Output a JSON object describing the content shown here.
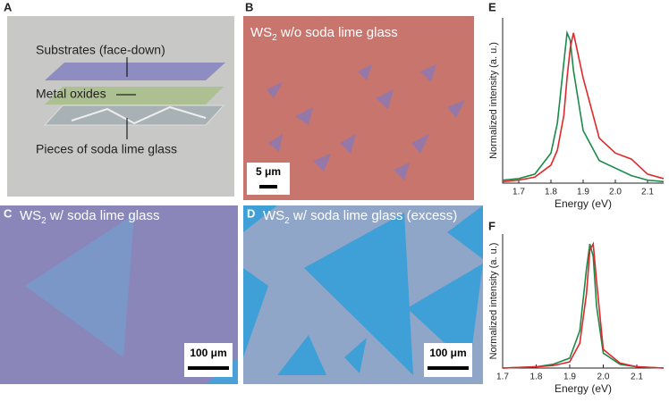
{
  "panels": {
    "a": {
      "panel_label": "A",
      "labels": [
        "Substrates (face-down)",
        "Metal oxides",
        "Pieces of soda lime glass"
      ]
    },
    "b": {
      "panel_label": "B",
      "caption": {
        "main": "WS",
        "sub": "2",
        "rest": " w/o soda lime glass"
      },
      "scale_bar": "5 μm"
    },
    "c": {
      "panel_label": "C",
      "caption": {
        "main": "WS",
        "sub": "2",
        "rest": " w/ soda lime glass"
      },
      "scale_bar": "100 μm"
    },
    "d": {
      "panel_label": "D",
      "caption": {
        "main": "WS",
        "sub": "2",
        "rest": " w/ soda lime glass (excess)"
      },
      "scale_bar": "100 μm"
    }
  },
  "chart_data": [
    {
      "type": "line",
      "panel_label": "E",
      "xlabel": "Energy (eV)",
      "ylabel": "Normalized intensity (a. u.)",
      "x": [
        1.65,
        1.7,
        1.75,
        1.8,
        1.82,
        1.84,
        1.85,
        1.86,
        1.87,
        1.9,
        1.95,
        2.0,
        2.05,
        2.1,
        2.15
      ],
      "series": [
        {
          "color": "#1a8a4a",
          "values": [
            0.02,
            0.03,
            0.06,
            0.2,
            0.4,
            0.8,
            1.0,
            0.95,
            0.75,
            0.35,
            0.15,
            0.1,
            0.05,
            0.02,
            0.01
          ]
        },
        {
          "color": "#e0282a",
          "values": [
            0.01,
            0.02,
            0.04,
            0.12,
            0.22,
            0.45,
            0.7,
            0.9,
            1.0,
            0.7,
            0.3,
            0.2,
            0.16,
            0.06,
            0.03
          ]
        }
      ],
      "xlim": [
        1.65,
        2.15
      ],
      "ylim": [
        0,
        1.1
      ],
      "xticks": [
        1.7,
        1.8,
        1.9,
        {
          "value": 2,
          "label": "2.0"
        },
        2.1
      ]
    },
    {
      "type": "line",
      "panel_label": "F",
      "xlabel": "Energy (eV)",
      "ylabel": "Normalized intensity (a. u.)",
      "x": [
        1.7,
        1.8,
        1.85,
        1.9,
        1.93,
        1.95,
        1.96,
        1.97,
        1.98,
        2.0,
        2.05,
        2.1,
        2.18
      ],
      "series": [
        {
          "color": "#1a8a4a",
          "values": [
            0,
            0.01,
            0.03,
            0.08,
            0.3,
            0.8,
            1.0,
            0.9,
            0.5,
            0.12,
            0.03,
            0.01,
            0
          ]
        },
        {
          "color": "#e0282a",
          "values": [
            0,
            0.01,
            0.02,
            0.05,
            0.2,
            0.6,
            0.95,
            1.0,
            0.7,
            0.15,
            0.04,
            0.01,
            0
          ]
        }
      ],
      "xlim": [
        1.7,
        2.18
      ],
      "ylim": [
        0,
        1.08
      ],
      "xticks": [
        1.7,
        1.8,
        1.9,
        {
          "value": 2,
          "label": "2.0"
        },
        2.1
      ]
    }
  ]
}
